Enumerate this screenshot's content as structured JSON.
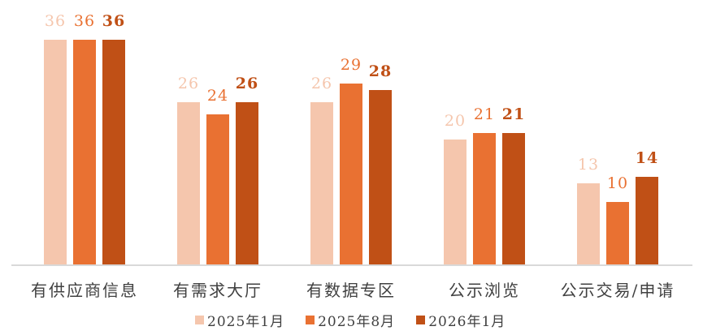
{
  "chart_data": {
    "type": "bar",
    "title": "",
    "xlabel": "",
    "ylabel": "",
    "ylim": [
      0,
      36
    ],
    "grid": false,
    "legend_position": "bottom",
    "categories": [
      "有供应商信息",
      "有需求大厅",
      "有数据专区",
      "公示浏览",
      "公示交易/申请"
    ],
    "series": [
      {
        "name": "2025年1月",
        "color": "#F5C6AD",
        "values": [
          36,
          26,
          26,
          20,
          13
        ]
      },
      {
        "name": "2025年8月",
        "color": "#E97132",
        "values": [
          36,
          24,
          29,
          21,
          10
        ]
      },
      {
        "name": "2026年1月",
        "color": "#C05016",
        "values": [
          36,
          26,
          28,
          21,
          14
        ]
      }
    ]
  }
}
